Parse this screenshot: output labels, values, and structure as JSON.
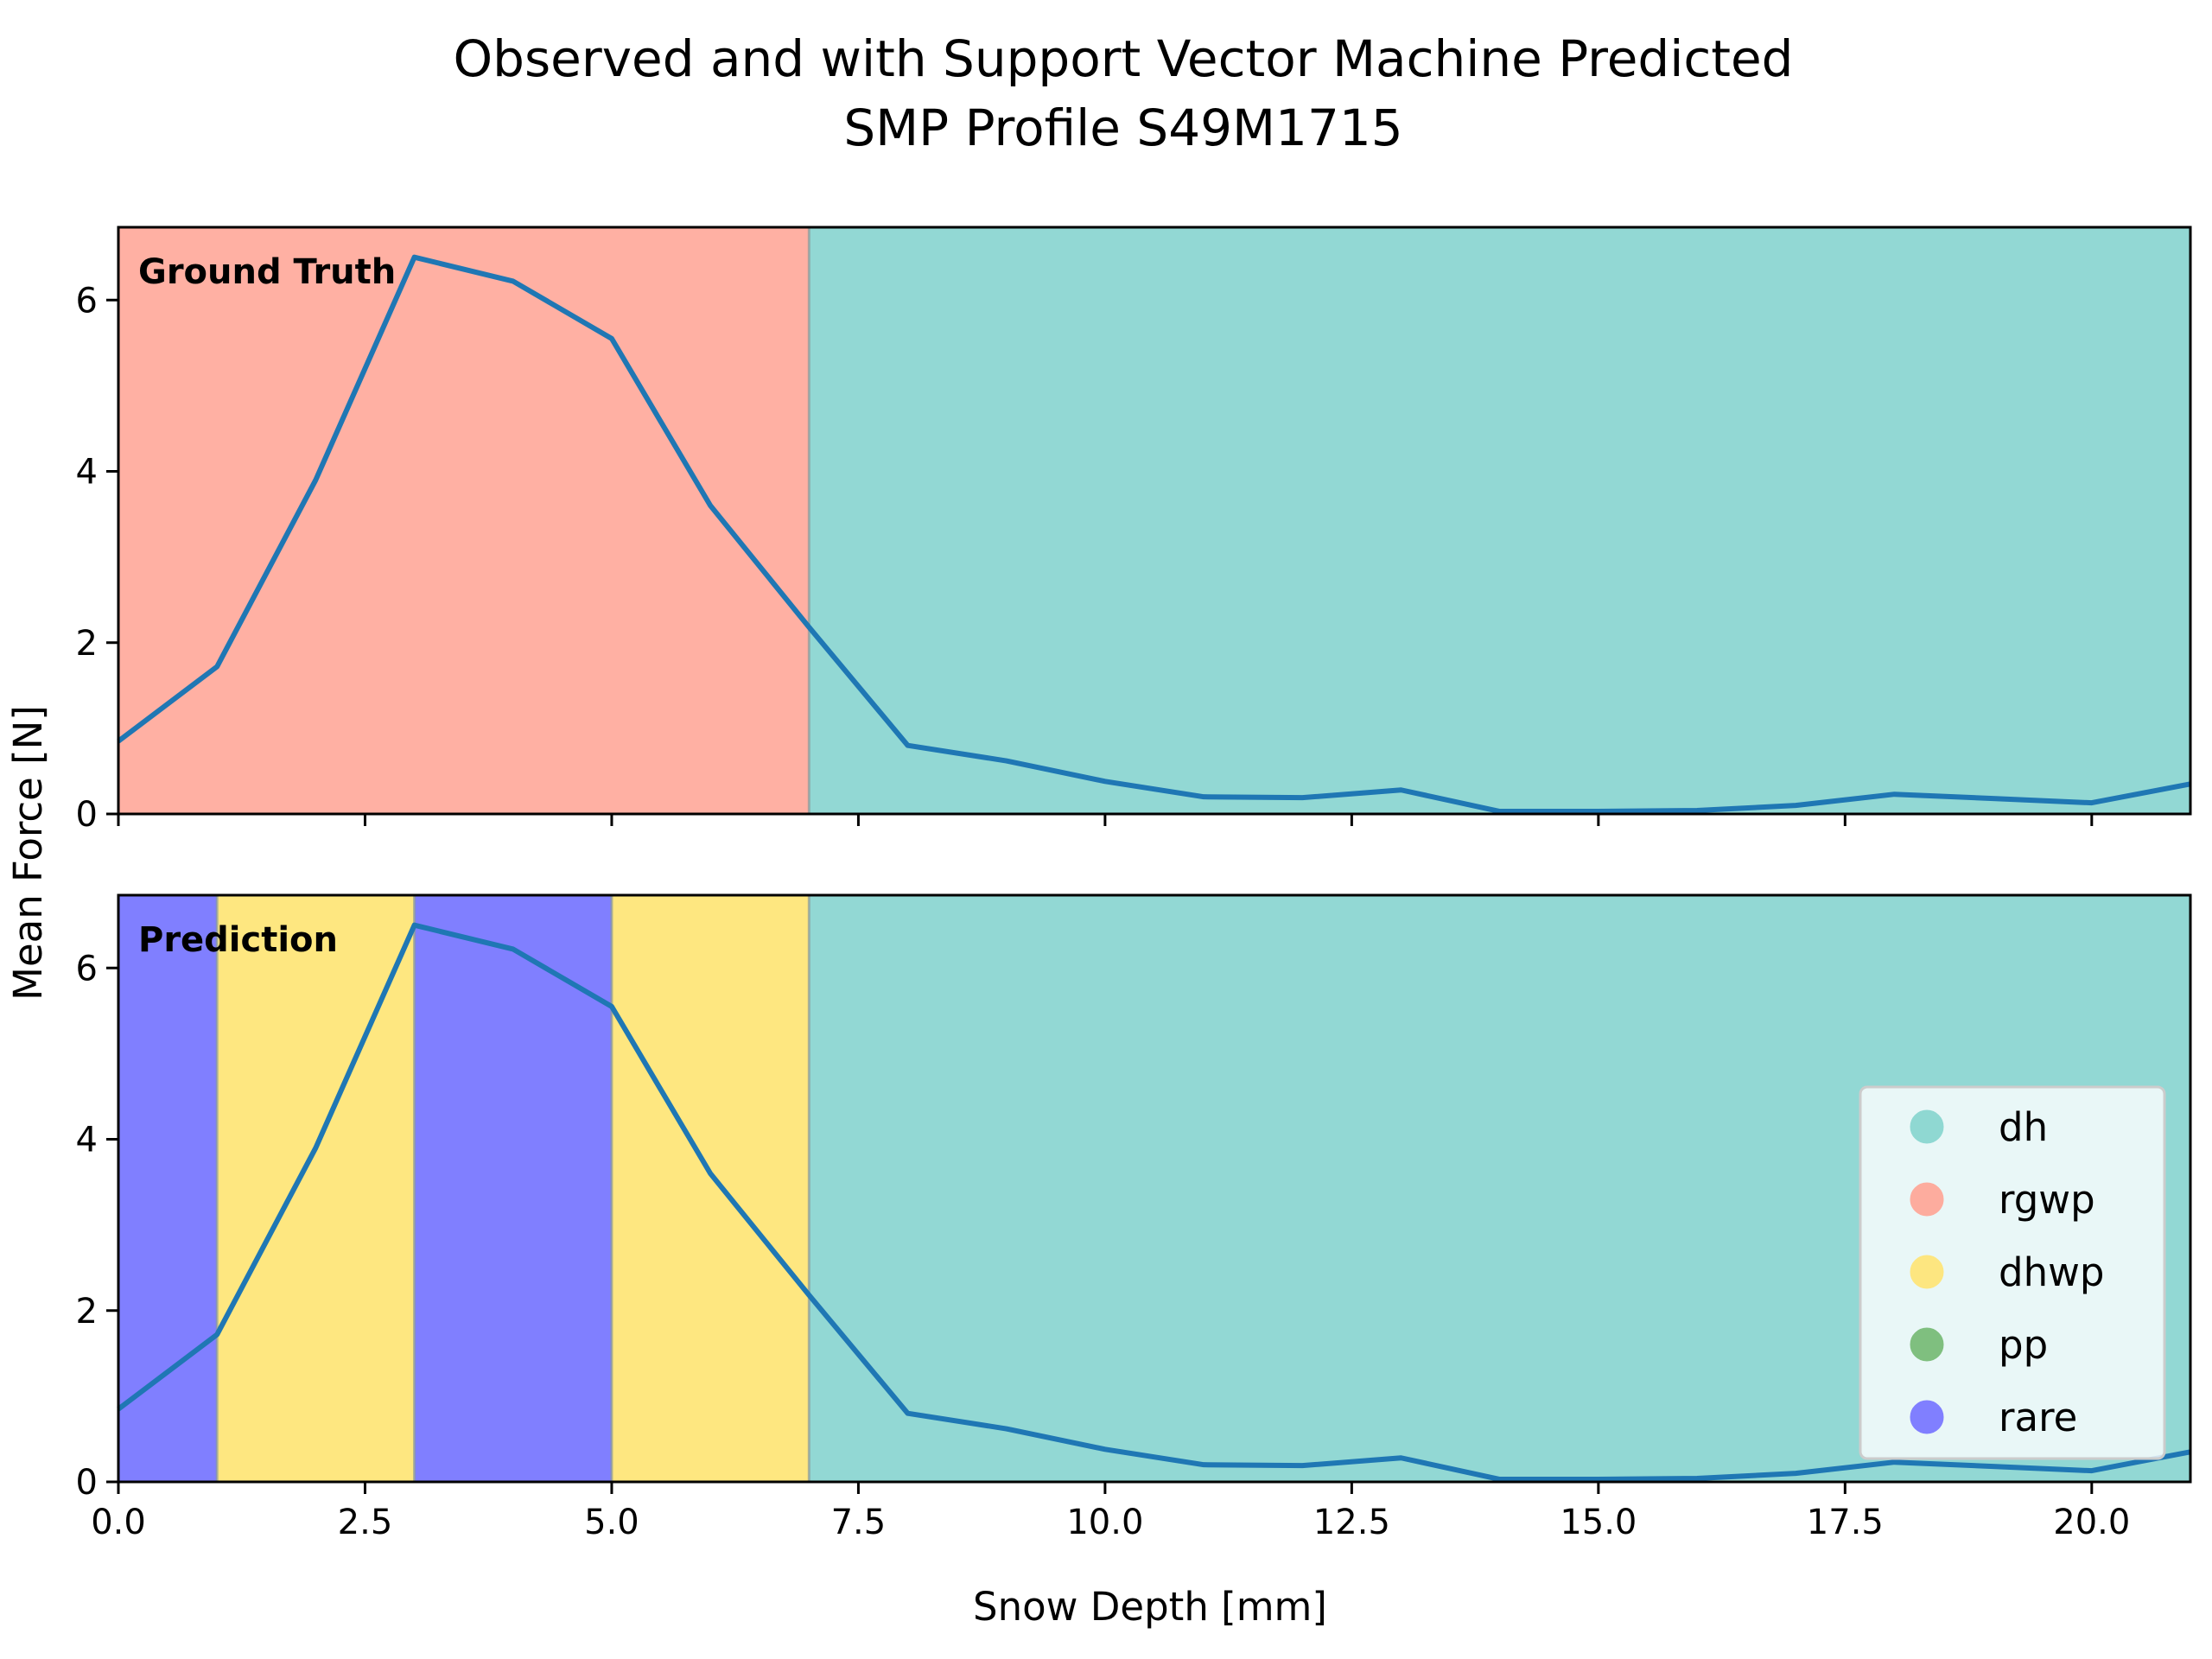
{
  "chart_data": {
    "type": "line",
    "title": [
      "Observed and with Support Vector Machine Predicted",
      "SMP Profile S49M1715"
    ],
    "xlabel": "Snow Depth [mm]",
    "ylabel": "Mean Force [N]",
    "xlim": [
      0,
      21
    ],
    "ylim": [
      0,
      6.85
    ],
    "xticks": [
      0.0,
      2.5,
      5.0,
      7.5,
      10.0,
      12.5,
      15.0,
      17.5,
      20.0
    ],
    "xtick_labels": [
      "0.0",
      "2.5",
      "5.0",
      "7.5",
      "10.0",
      "12.5",
      "15.0",
      "17.5",
      "20.0"
    ],
    "yticks": [
      0,
      2,
      4,
      6
    ],
    "ytick_labels": [
      "0",
      "2",
      "4",
      "6"
    ],
    "series": {
      "x": [
        0,
        1,
        2,
        3,
        4,
        5,
        6,
        7,
        8,
        9,
        10,
        11,
        12,
        13,
        14,
        15,
        16,
        17,
        18,
        19,
        20,
        21
      ],
      "y": [
        0.85,
        1.72,
        3.9,
        6.5,
        6.22,
        5.55,
        3.6,
        2.18,
        0.8,
        0.62,
        0.38,
        0.2,
        0.19,
        0.28,
        0.03,
        0.03,
        0.04,
        0.1,
        0.23,
        0.18,
        0.13,
        0.35
      ],
      "color": "#1f77b4"
    },
    "panels": [
      {
        "label": "Ground Truth",
        "segments": [
          {
            "start": 0,
            "end": 7,
            "class": "rgwp"
          },
          {
            "start": 7,
            "end": 21,
            "class": "dh"
          }
        ]
      },
      {
        "label": "Prediction",
        "segments": [
          {
            "start": 0,
            "end": 1,
            "class": "rare"
          },
          {
            "start": 1,
            "end": 3,
            "class": "dhwp"
          },
          {
            "start": 3,
            "end": 5,
            "class": "rare"
          },
          {
            "start": 5,
            "end": 7,
            "class": "dhwp"
          },
          {
            "start": 7,
            "end": 21,
            "class": "dh"
          }
        ]
      }
    ],
    "legend": {
      "placement": "lower-right of bottom panel",
      "entries": [
        {
          "name": "dh",
          "color": "#8fd8d2"
        },
        {
          "name": "rgwp",
          "color": "#fdac9e"
        },
        {
          "name": "dhwp",
          "color": "#fde680"
        },
        {
          "name": "pp",
          "color": "#7fbf7f"
        },
        {
          "name": "rare",
          "color": "#807fff"
        }
      ]
    },
    "class_colors": {
      "dh": "#92d8d4",
      "rgwp": "#ffb0a3",
      "dhwp": "#fee780",
      "pp": "#7fbf7f",
      "rare": "#807fff"
    }
  }
}
